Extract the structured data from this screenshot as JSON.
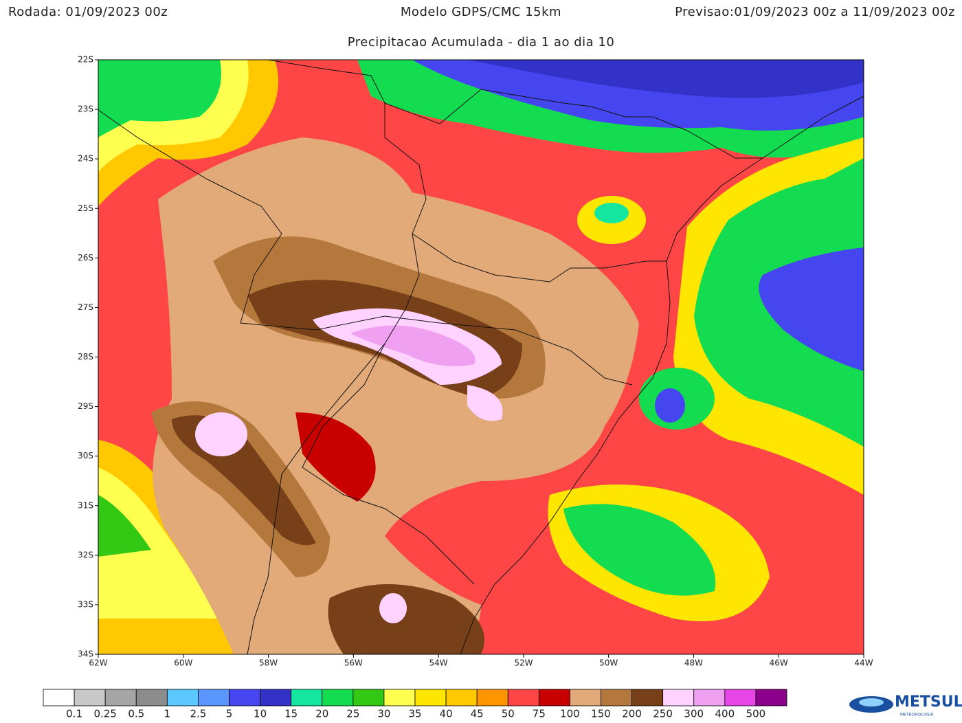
{
  "header": {
    "left": "Rodada: 01/09/2023 00z",
    "center": "Modelo GDPS/CMC 15km",
    "right": "Previsao:01/09/2023 00z a 11/09/2023 00z"
  },
  "subtitle": "Precipitacao Acumulada - dia 1 ao dia 10",
  "map": {
    "lat_labels": [
      "22S",
      "23S",
      "24S",
      "25S",
      "26S",
      "27S",
      "28S",
      "29S",
      "30S",
      "31S",
      "32S",
      "33S",
      "34S"
    ],
    "lon_labels": [
      "62W",
      "60W",
      "58W",
      "56W",
      "54W",
      "52W",
      "50W",
      "48W",
      "46W",
      "44W"
    ]
  },
  "colorbar": {
    "colors": [
      "#ffffff",
      "#c8c8c8",
      "#a5a5a5",
      "#8c8c8c",
      "#5ac8ff",
      "#5a96ff",
      "#4646f0",
      "#3232c8",
      "#14e6a0",
      "#14dc50",
      "#32c814",
      "#ffff50",
      "#ffe600",
      "#ffc800",
      "#ff9600",
      "#ff4646",
      "#c80000",
      "#e1aa78",
      "#b4783c",
      "#784018",
      "#ffd2ff",
      "#f0a0f0",
      "#e646e6",
      "#8c008c"
    ],
    "labels": [
      0.1,
      0.25,
      0.5,
      1,
      2.5,
      5,
      10,
      15,
      20,
      25,
      30,
      35,
      40,
      45,
      50,
      75,
      100,
      150,
      200,
      250,
      300,
      400,
      500
    ]
  },
  "logo": {
    "name": "METSUL",
    "tagline": "METEOROLOGIA"
  }
}
